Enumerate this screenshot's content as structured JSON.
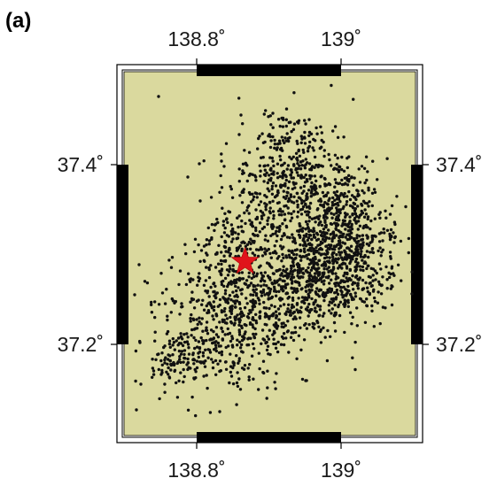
{
  "panel_label": "(a)",
  "map": {
    "background_color": "#dad99e",
    "event_color": "#111111",
    "epicenter_color": "#e0141b",
    "lon_ticks": [
      {
        "value": 138.8,
        "label": "138.8˚"
      },
      {
        "value": 139.0,
        "label": "139˚"
      }
    ],
    "lat_ticks": [
      {
        "value": 37.4,
        "label": "37.4˚"
      },
      {
        "value": 37.2,
        "label": "37.2˚"
      }
    ],
    "lon_range": [
      138.7,
      139.1
    ],
    "lat_range": [
      37.1,
      37.5
    ],
    "epicenter": {
      "lon": 138.867,
      "lat": 37.292
    }
  }
}
